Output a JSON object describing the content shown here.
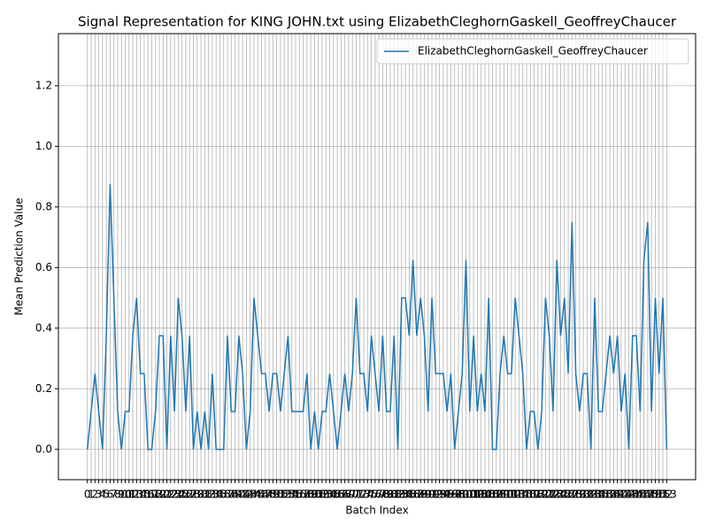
{
  "chart_data": {
    "type": "line",
    "title": "Signal Representation for KING JOHN.txt using ElizabethCleghornGaskell_GeoffreyChaucer",
    "x_label": "Batch Index",
    "y_label": "Mean Prediction Value",
    "x": [
      0,
      1,
      2,
      3,
      4,
      5,
      6,
      7,
      8,
      9,
      10,
      11,
      12,
      13,
      14,
      15,
      16,
      17,
      18,
      19,
      20,
      21,
      22,
      23,
      24,
      25,
      26,
      27,
      28,
      29,
      30,
      31,
      32,
      33,
      34,
      35,
      36,
      37,
      38,
      39,
      40,
      41,
      42,
      43,
      44,
      45,
      46,
      47,
      48,
      49,
      50,
      51,
      52,
      53,
      54,
      55,
      56,
      57,
      58,
      59,
      60,
      61,
      62,
      63,
      64,
      65,
      66,
      67,
      68,
      69,
      70,
      71,
      72,
      73,
      74,
      75,
      76,
      77,
      78,
      79,
      80,
      81,
      82,
      83,
      84,
      85,
      86,
      87,
      88,
      89,
      90,
      91,
      92,
      93,
      94,
      95,
      96,
      97,
      98,
      99,
      100,
      101,
      102,
      103,
      104,
      105,
      106,
      107,
      108,
      109,
      110,
      111,
      112,
      113,
      114,
      115,
      116,
      117,
      118,
      119,
      120,
      121,
      122,
      123,
      124,
      125,
      126,
      127,
      128,
      129,
      130,
      131,
      132,
      133,
      134,
      135,
      136,
      137,
      138,
      139,
      140,
      141,
      142,
      143,
      144,
      145,
      146,
      147,
      148,
      149,
      150,
      151,
      152,
      153
    ],
    "series": [
      {
        "name": "ElizabethCleghornGaskell_GeoffreyChaucer",
        "color": "#1f77b4",
        "values": [
          0,
          0.125,
          0.25,
          0.125,
          0,
          0.375,
          0.875,
          0.5,
          0.125,
          0,
          0.125,
          0.125,
          0.375,
          0.5,
          0.25,
          0.25,
          0,
          0,
          0.125,
          0.375,
          0.375,
          0,
          0.375,
          0.125,
          0.5,
          0.375,
          0.125,
          0.375,
          0,
          0.125,
          0,
          0.125,
          0,
          0.25,
          0,
          0,
          0,
          0.375,
          0.125,
          0.125,
          0.375,
          0.25,
          0,
          0.125,
          0.5,
          0.375,
          0.25,
          0.25,
          0.125,
          0.25,
          0.25,
          0.125,
          0.25,
          0.375,
          0.125,
          0.125,
          0.125,
          0.125,
          0.25,
          0,
          0.125,
          0,
          0.125,
          0.125,
          0.25,
          0.125,
          0,
          0.125,
          0.25,
          0.125,
          0.25,
          0.5,
          0.25,
          0.25,
          0.125,
          0.375,
          0.25,
          0.125,
          0.375,
          0.125,
          0.125,
          0.375,
          0,
          0.5,
          0.5,
          0.375,
          0.625,
          0.375,
          0.5,
          0.375,
          0.125,
          0.5,
          0.25,
          0.25,
          0.25,
          0.125,
          0.25,
          0,
          0.125,
          0.25,
          0.625,
          0.125,
          0.375,
          0.125,
          0.25,
          0.125,
          0.5,
          0,
          0,
          0.25,
          0.375,
          0.25,
          0.25,
          0.5,
          0.375,
          0.25,
          0,
          0.125,
          0.125,
          0,
          0.125,
          0.5,
          0.375,
          0.125,
          0.625,
          0.375,
          0.5,
          0.25,
          0.75,
          0.25,
          0.125,
          0.25,
          0.25,
          0,
          0.5,
          0.125,
          0.125,
          0.25,
          0.375,
          0.25,
          0.375,
          0.125,
          0.25,
          0,
          0.375,
          0.375,
          0.125,
          0.625,
          0.75,
          0.125,
          0.5,
          0.25,
          0.5,
          0
        ]
      }
    ],
    "xlim": [
      -7.65,
      160.65
    ],
    "xticks": [
      0,
      1,
      2,
      3,
      4,
      5,
      6,
      7,
      8,
      9,
      10,
      11,
      12,
      13,
      14,
      15,
      16,
      17,
      18,
      19,
      20,
      21,
      22,
      23,
      24,
      25,
      26,
      27,
      28,
      29,
      30,
      31,
      32,
      33,
      34,
      35,
      36,
      37,
      38,
      39,
      40,
      41,
      42,
      43,
      44,
      45,
      46,
      47,
      48,
      49,
      50,
      51,
      52,
      53,
      54,
      55,
      56,
      57,
      58,
      59,
      60,
      61,
      62,
      63,
      64,
      65,
      66,
      67,
      68,
      69,
      70,
      71,
      72,
      73,
      74,
      75,
      76,
      77,
      78,
      79,
      80,
      81,
      82,
      83,
      84,
      85,
      86,
      87,
      88,
      89,
      90,
      91,
      92,
      93,
      94,
      95,
      96,
      97,
      98,
      99,
      100,
      101,
      102,
      103,
      104,
      105,
      106,
      107,
      108,
      109,
      110,
      111,
      112,
      113,
      114,
      115,
      116,
      117,
      118,
      119,
      120,
      121,
      122,
      123,
      124,
      125,
      126,
      127,
      128,
      129,
      130,
      131,
      132,
      133,
      134,
      135,
      136,
      137,
      138,
      139,
      140,
      141,
      142,
      143,
      144,
      145,
      146,
      147,
      148,
      149,
      150,
      151,
      152,
      153
    ],
    "ylim": [
      -0.1,
      1.372
    ],
    "yticks": [
      {
        "value": 0,
        "label": "0.0"
      },
      {
        "value": 0.2,
        "label": "0.2"
      },
      {
        "value": 0.4,
        "label": "0.4"
      },
      {
        "value": 0.6,
        "label": "0.6"
      },
      {
        "value": 0.8,
        "label": "0.8"
      },
      {
        "value": 1,
        "label": "1.0"
      },
      {
        "value": 1.2,
        "label": "1.2"
      }
    ],
    "grid": true,
    "legend": "upper right"
  }
}
